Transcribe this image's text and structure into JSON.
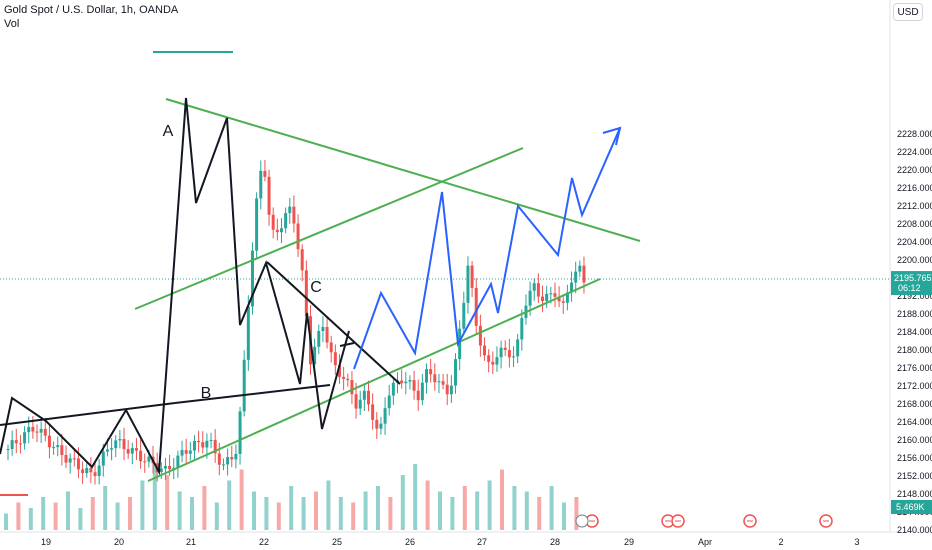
{
  "legend": {
    "symbol": "Gold Spot / U.S. Dollar, 1h, OANDA",
    "volume_label": "Vol"
  },
  "currency_button": "USD",
  "chart_data": {
    "type": "candlestick",
    "x_ticks": [
      "19",
      "20",
      "21",
      "22",
      "25",
      "26",
      "27",
      "28",
      "29",
      "Apr",
      "2",
      "3"
    ],
    "y_ticks": [
      2140,
      2144,
      2148,
      2152,
      2156,
      2160,
      2164,
      2168,
      2172,
      2176,
      2180,
      2184,
      2188,
      2192,
      2196,
      2200,
      2204,
      2208,
      2212,
      2216,
      2220,
      2224,
      2228
    ],
    "y_tick_labels": [
      "2140.000",
      "2144.000",
      "2148.000",
      "2152.000",
      "2156.000",
      "2160.000",
      "2164.000",
      "2168.000",
      "2172.000",
      "2176.000",
      "2180.000",
      "2184.000",
      "2188.000",
      "2192.000",
      "2196.000",
      "2200.000",
      "2204.000",
      "2208.000",
      "2212.000",
      "2216.000",
      "2220.000",
      "2224.000",
      "2228.000"
    ],
    "ylim": [
      2140,
      2230
    ],
    "price_path": [
      [
        0,
        2158
      ],
      [
        0.5,
        2163
      ],
      [
        1,
        2157
      ],
      [
        1.6,
        2152
      ],
      [
        2,
        2160
      ],
      [
        2.7,
        2155
      ],
      [
        3,
        2153
      ],
      [
        3.4,
        2158
      ],
      [
        3.8,
        2160
      ],
      [
        4.1,
        2154
      ],
      [
        4.35,
        2158
      ],
      [
        4.45,
        2170
      ],
      [
        4.55,
        2188
      ],
      [
        4.7,
        2210
      ],
      [
        4.85,
        2224
      ],
      [
        5,
        2205
      ],
      [
        5.2,
        2208
      ],
      [
        5.4,
        2212
      ],
      [
        5.6,
        2196
      ],
      [
        5.75,
        2178
      ],
      [
        6,
        2186
      ],
      [
        6.2,
        2176
      ],
      [
        6.4,
        2174
      ],
      [
        6.6,
        2168
      ],
      [
        6.8,
        2170
      ],
      [
        6.95,
        2165
      ],
      [
        7.05,
        2160
      ],
      [
        7.2,
        2170
      ],
      [
        7.5,
        2174
      ],
      [
        7.8,
        2170
      ],
      [
        8,
        2176
      ],
      [
        8.2,
        2172
      ],
      [
        8.4,
        2171
      ],
      [
        8.5,
        2176
      ],
      [
        8.6,
        2186
      ],
      [
        8.75,
        2199
      ],
      [
        8.9,
        2186
      ],
      [
        9.1,
        2176
      ],
      [
        9.3,
        2179
      ],
      [
        9.5,
        2180
      ],
      [
        9.65,
        2178
      ],
      [
        9.8,
        2190
      ],
      [
        10,
        2194
      ],
      [
        10.2,
        2191
      ],
      [
        10.4,
        2193
      ],
      [
        10.55,
        2189
      ],
      [
        10.7,
        2196
      ],
      [
        10.9,
        2198
      ],
      [
        10.95,
        2195.765
      ]
    ],
    "volume": [
      3,
      5,
      4,
      6,
      5,
      7,
      4,
      6,
      8,
      5,
      6,
      9,
      12,
      10,
      7,
      6,
      8,
      5,
      9,
      11,
      7,
      6,
      5,
      8,
      6,
      7,
      9,
      6,
      5,
      7,
      8,
      6,
      10,
      12,
      9,
      7,
      6,
      8,
      7,
      9,
      11,
      8,
      7,
      6,
      8,
      5,
      6
    ],
    "last_price": "2195.765",
    "countdown": "06:12",
    "last_volume": "5.469K",
    "annotations": [
      "A",
      "B",
      "C"
    ],
    "colors": {
      "up": "#26a69a",
      "down": "#ef5350",
      "trendline": "#4caf50",
      "wave": "#2962ff",
      "pattern": "#131722",
      "marker": "#ef5350"
    }
  }
}
